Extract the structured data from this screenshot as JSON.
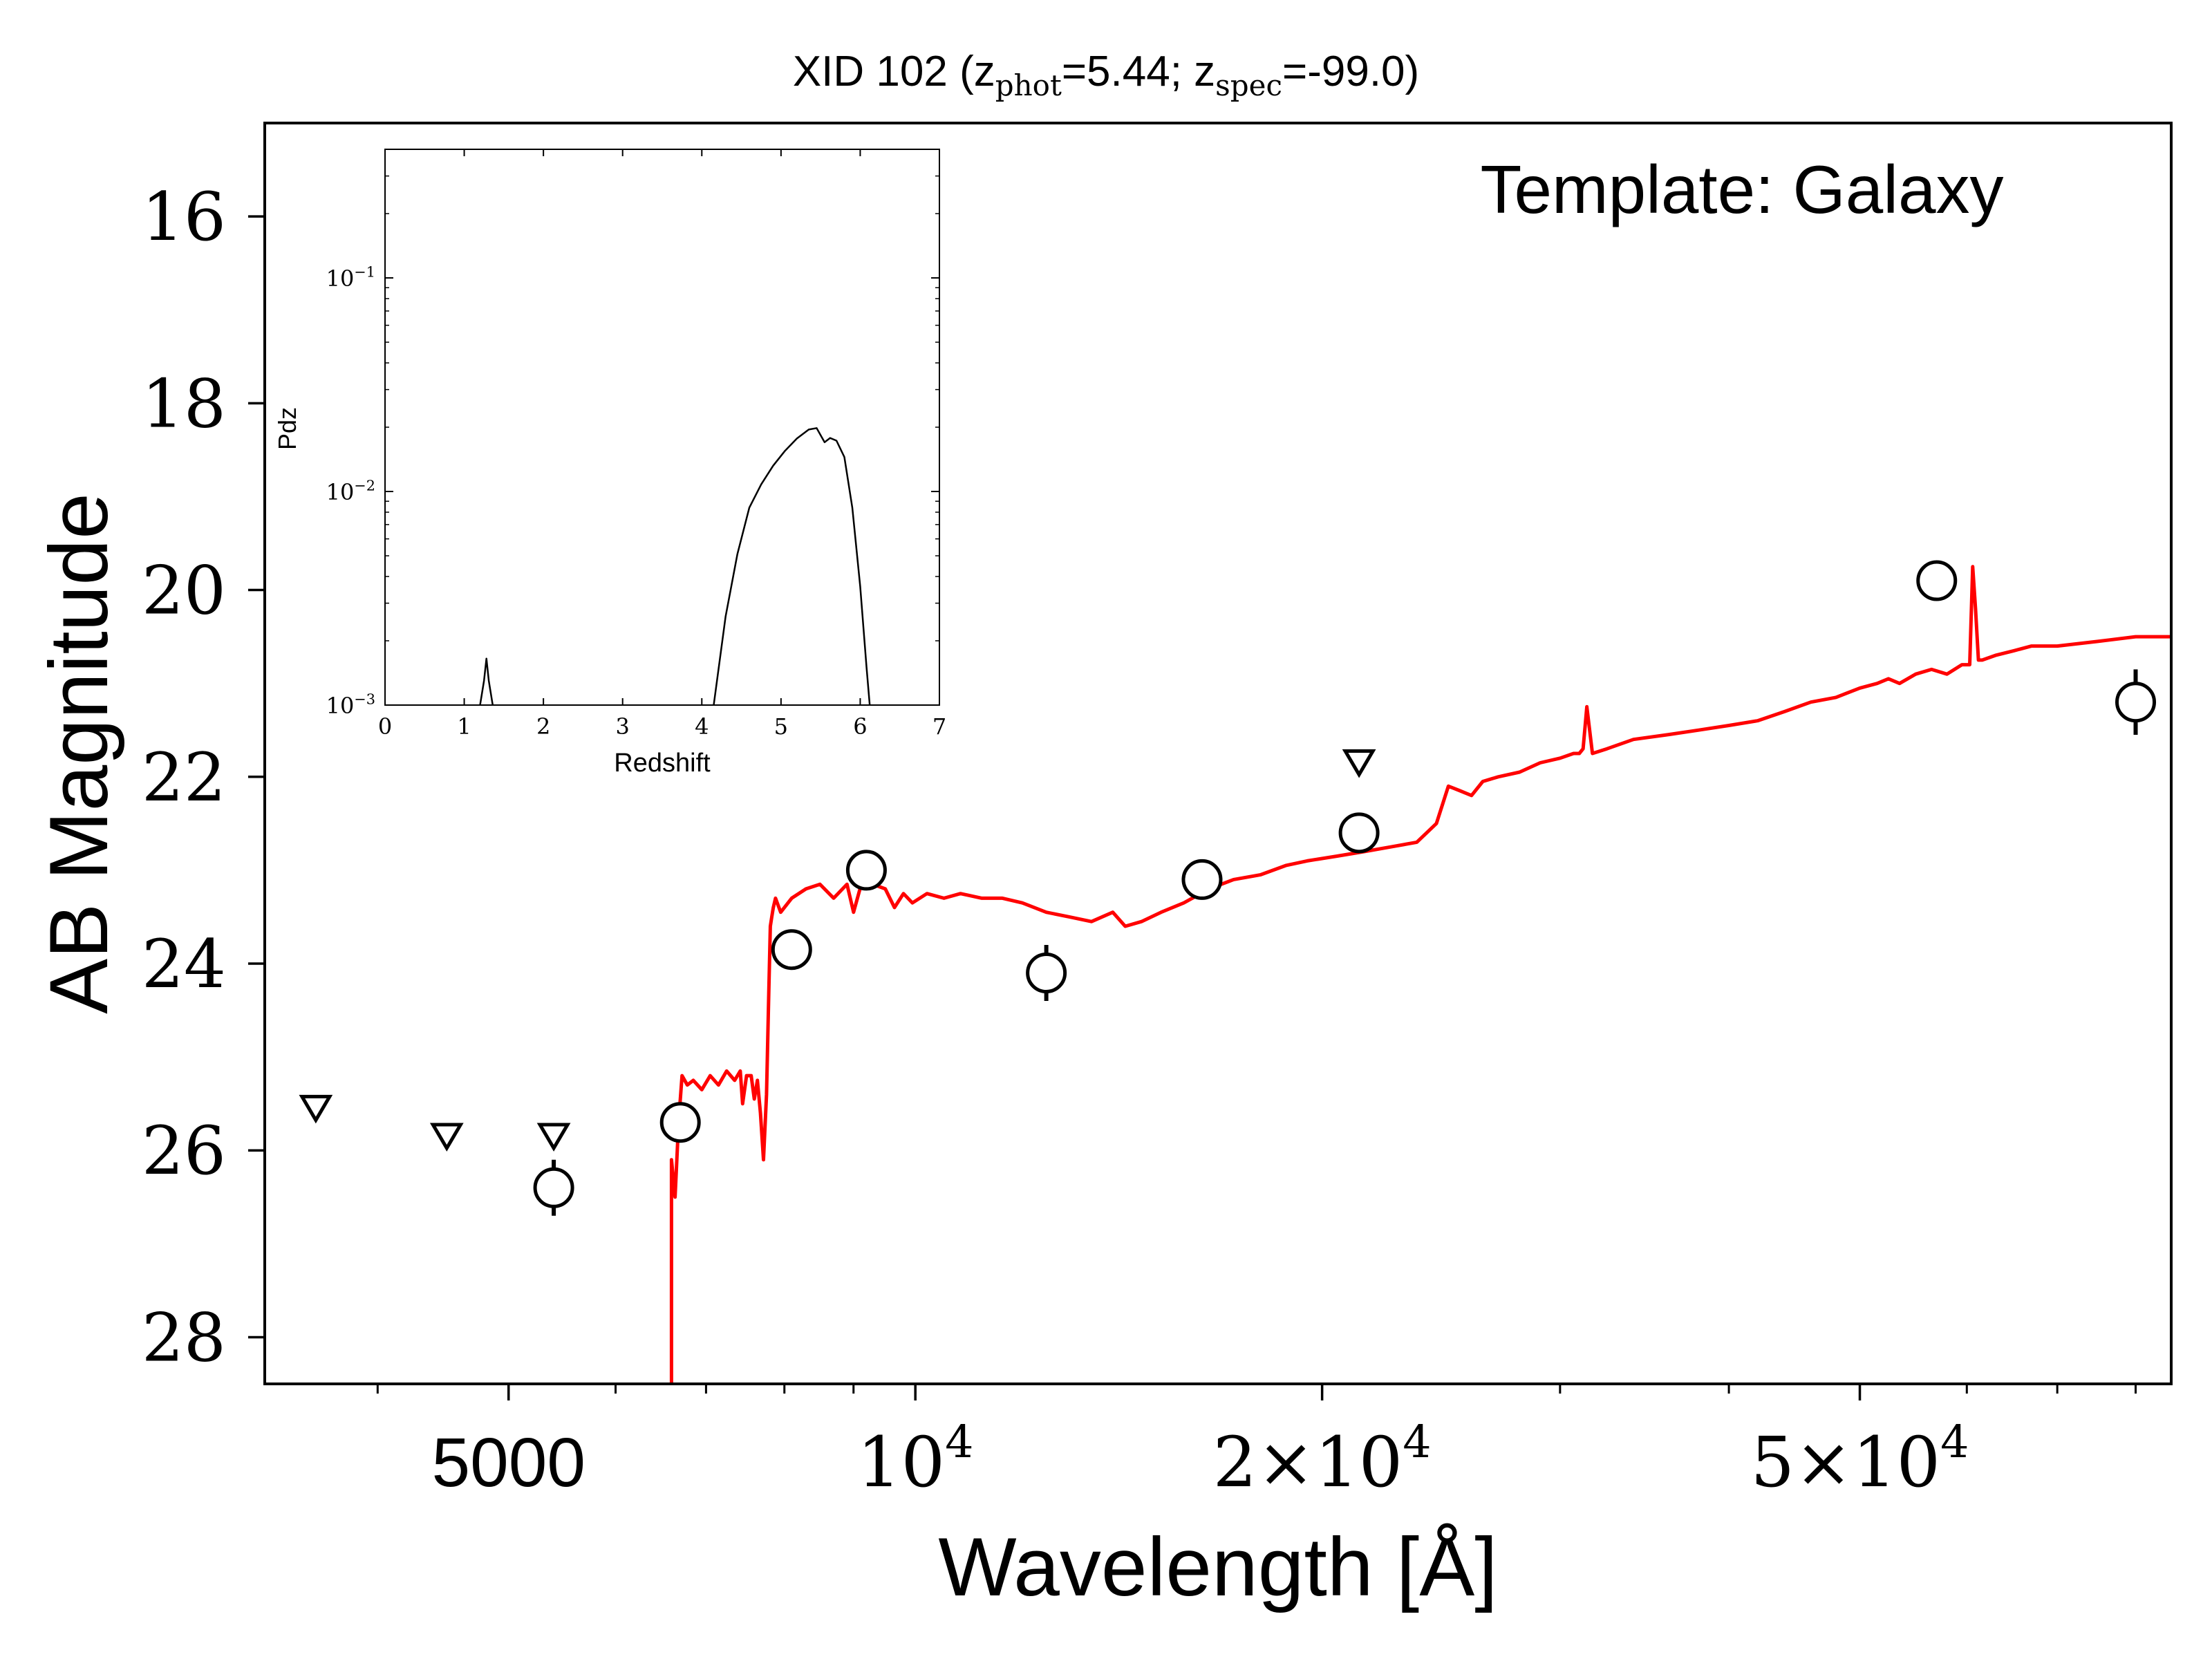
{
  "chart_data": [
    {
      "type": "scatter",
      "title": "XID 102 (z_phot=5.44; z_spec=-99.0)",
      "title_parts": {
        "prefix": "XID 102 (z",
        "sub1": "phot",
        "mid": "=5.44; z",
        "sub2": "spec",
        "suffix": "=-99.0)"
      },
      "annotation": "Template: Galaxy",
      "xlabel": "Wavelength [Å]",
      "ylabel": "AB Magnitude",
      "x_scale": "log",
      "xlim": [
        3300,
        85000
      ],
      "ylim": [
        28.5,
        15.0
      ],
      "y_inverted": true,
      "x_ticks": [
        {
          "value": 5000,
          "base": "5000",
          "exp": ""
        },
        {
          "value": 10000,
          "base": "10",
          "exp": "4"
        },
        {
          "value": 20000,
          "base": "2×10",
          "exp": "4"
        },
        {
          "value": 50000,
          "base": "5×10",
          "exp": "4"
        }
      ],
      "y_ticks": [
        {
          "value": 16,
          "label": "16"
        },
        {
          "value": 18,
          "label": "18"
        },
        {
          "value": 20,
          "label": "20"
        },
        {
          "value": 22,
          "label": "22"
        },
        {
          "value": 24,
          "label": "24"
        },
        {
          "value": 26,
          "label": "26"
        },
        {
          "value": 28,
          "label": "28"
        }
      ],
      "grid": false,
      "colors": {
        "template": "#ff0000",
        "points": "#000000"
      },
      "series": [
        {
          "kind": "detections",
          "points": [
            {
              "x": 5400,
              "y": 26.4,
              "err": 0.3
            },
            {
              "x": 6700,
              "y": 25.7,
              "err": 0.15
            },
            {
              "x": 8100,
              "y": 23.85,
              "err": 0.1
            },
            {
              "x": 9200,
              "y": 23.0,
              "err": 0.08
            },
            {
              "x": 12500,
              "y": 24.1,
              "err": 0.3
            },
            {
              "x": 16300,
              "y": 23.1,
              "err": 0.1
            },
            {
              "x": 21300,
              "y": 22.6,
              "err": 0.1
            },
            {
              "x": 57000,
              "y": 19.9,
              "err": 0.1
            },
            {
              "x": 80000,
              "y": 21.2,
              "err": 0.35
            }
          ]
        },
        {
          "kind": "upper_limits",
          "points": [
            {
              "x": 3600,
              "y": 25.55
            },
            {
              "x": 4500,
              "y": 25.85
            },
            {
              "x": 5400,
              "y": 25.85
            },
            {
              "x": 21300,
              "y": 21.85
            }
          ]
        },
        {
          "kind": "template",
          "x": [
            6600,
            6600,
            6640,
            6680,
            6720,
            6780,
            6850,
            6950,
            7050,
            7150,
            7250,
            7350,
            7420,
            7450,
            7500,
            7560,
            7600,
            7640,
            7680,
            7720,
            7760,
            7790,
            7810,
            7830,
            7850,
            7880,
            7950,
            8100,
            8300,
            8500,
            8700,
            8900,
            9000,
            9100,
            9300,
            9500,
            9650,
            9800,
            9950,
            10200,
            10500,
            10800,
            11200,
            11600,
            12000,
            12500,
            13000,
            13500,
            14000,
            14300,
            14700,
            15200,
            15800,
            16500,
            17200,
            18000,
            18800,
            19500,
            20500,
            21500,
            22500,
            23500,
            24300,
            24800,
            25300,
            25800,
            26300,
            27000,
            28000,
            29000,
            30000,
            30700,
            31000,
            31200,
            31400,
            31700,
            32500,
            34000,
            36000,
            38000,
            40000,
            42000,
            44000,
            46000,
            48000,
            50000,
            51500,
            52500,
            53500,
            55000,
            56500,
            58000,
            59500,
            60300,
            60600,
            60900,
            61200,
            61600,
            63000,
            65000,
            67000,
            70000,
            75000,
            80000,
            85000
          ],
          "y": [
            28.5,
            26.1,
            26.5,
            25.7,
            25.2,
            25.3,
            25.25,
            25.35,
            25.2,
            25.3,
            25.15,
            25.25,
            25.15,
            25.5,
            25.2,
            25.2,
            25.45,
            25.25,
            25.6,
            26.1,
            25.4,
            24.3,
            23.6,
            23.5,
            23.4,
            23.3,
            23.45,
            23.3,
            23.2,
            23.15,
            23.3,
            23.15,
            23.45,
            23.2,
            23.15,
            23.2,
            23.4,
            23.25,
            23.35,
            23.25,
            23.3,
            23.25,
            23.3,
            23.3,
            23.35,
            23.45,
            23.5,
            23.55,
            23.45,
            23.6,
            23.55,
            23.45,
            23.35,
            23.2,
            23.1,
            23.05,
            22.95,
            22.9,
            22.85,
            22.8,
            22.75,
            22.7,
            22.5,
            22.1,
            22.15,
            22.2,
            22.05,
            22.0,
            21.95,
            21.85,
            21.8,
            21.75,
            21.75,
            21.7,
            21.25,
            21.75,
            21.7,
            21.6,
            21.55,
            21.5,
            21.45,
            21.4,
            21.3,
            21.2,
            21.15,
            21.05,
            21.0,
            20.95,
            21.0,
            20.9,
            20.85,
            20.9,
            20.8,
            20.8,
            19.75,
            20.2,
            20.75,
            20.75,
            20.7,
            20.65,
            20.6,
            20.6,
            20.55,
            20.5,
            20.5
          ]
        }
      ]
    },
    {
      "type": "line",
      "xlabel": "Redshift",
      "ylabel": "Pdz",
      "y_scale": "log",
      "xlim": [
        0,
        7
      ],
      "ylim": [
        0.001,
        0.4
      ],
      "x_ticks": [
        "0",
        "1",
        "2",
        "3",
        "4",
        "5",
        "6",
        "7"
      ],
      "y_ticks": [
        {
          "value": 0.1,
          "base": "10",
          "exp": "−1"
        },
        {
          "value": 0.01,
          "base": "10",
          "exp": "−2"
        },
        {
          "value": 0.001,
          "base": "10",
          "exp": "−3"
        }
      ],
      "colors": {
        "line": "#000000"
      },
      "series": [
        {
          "x": [
            1.2,
            1.25,
            1.28,
            1.31,
            1.36
          ],
          "y": [
            0.001,
            0.0013,
            0.00165,
            0.0013,
            0.001
          ]
        },
        {
          "x": [
            4.15,
            4.3,
            4.45,
            4.6,
            4.75,
            4.9,
            5.05,
            5.2,
            5.35,
            5.45,
            5.55,
            5.62,
            5.7,
            5.8,
            5.9,
            6.0,
            6.08,
            6.12
          ],
          "y": [
            0.001,
            0.0026,
            0.0051,
            0.0084,
            0.0108,
            0.0132,
            0.0155,
            0.0177,
            0.0195,
            0.0198,
            0.017,
            0.0178,
            0.0173,
            0.0145,
            0.0084,
            0.0036,
            0.0015,
            0.001
          ]
        }
      ]
    }
  ]
}
